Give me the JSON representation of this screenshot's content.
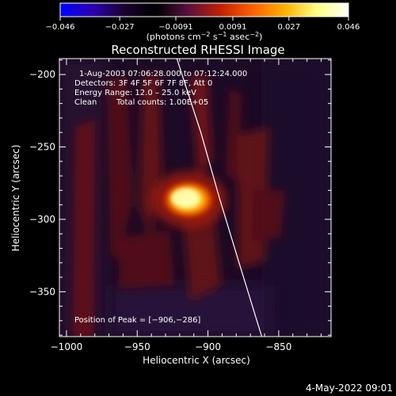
{
  "chart_data": {
    "type": "heatmap",
    "title": "Reconstructed RHESSI Image",
    "xlabel": "Heliocentric X (arcsec)",
    "ylabel": "Heliocentric Y (arcsec)",
    "xlim": [
      -1005,
      -813
    ],
    "ylim": [
      -381,
      -189
    ],
    "x_ticks": [
      -1000,
      -950,
      -900,
      -850
    ],
    "x_tick_labels": [
      "−1000",
      "−950",
      "−900",
      "−850"
    ],
    "y_ticks": [
      -200,
      -250,
      -300,
      -350
    ],
    "y_tick_labels": [
      "−200",
      "−250",
      "−300",
      "−350"
    ],
    "colorbar": {
      "min": -0.046,
      "max": 0.046,
      "ticks": [
        -0.046,
        -0.027,
        -0.0091,
        0.0091,
        0.027,
        0.046
      ],
      "tick_labels": [
        "−0.046",
        "−0.027",
        "−0.0091",
        "0.0091",
        "0.027",
        "0.046"
      ],
      "colors": [
        "#0000ff",
        "#2a00b0",
        "#1a0030",
        "#000000",
        "#5a1040",
        "#c02000",
        "#ff6000",
        "#ffb000",
        "#ffff80",
        "#ffffff"
      ],
      "unit_prefix": "(photons cm",
      "unit_exp1": "−2",
      "unit_mid": " s",
      "unit_exp2": "−1",
      "unit_mid2": " asec",
      "unit_exp3": "−2",
      "unit_suffix": ")"
    },
    "peak": {
      "x": -906,
      "y": -286,
      "value": 0.046
    },
    "limb_curve": [
      [
        -922,
        -189
      ],
      [
        -905,
        -240
      ],
      [
        -892,
        -285
      ],
      [
        -878,
        -330
      ],
      [
        -862,
        -381
      ]
    ],
    "annotations": {
      "time_range": "1‐Aug‐2003 07:06:28.000 to 07:12:24.000",
      "detectors": "Detectors: 3F 4F 5F 6F 7F 8F, Att 0",
      "energy": "Energy Range: 12.0 – 25.0 keV",
      "clean": "Clean",
      "total_counts": "Total counts: 1.00E+05",
      "peak_position": "Position of Peak = [−906,−286]"
    }
  },
  "footer": {
    "timestamp": "4‐May‐2022 09:01"
  }
}
